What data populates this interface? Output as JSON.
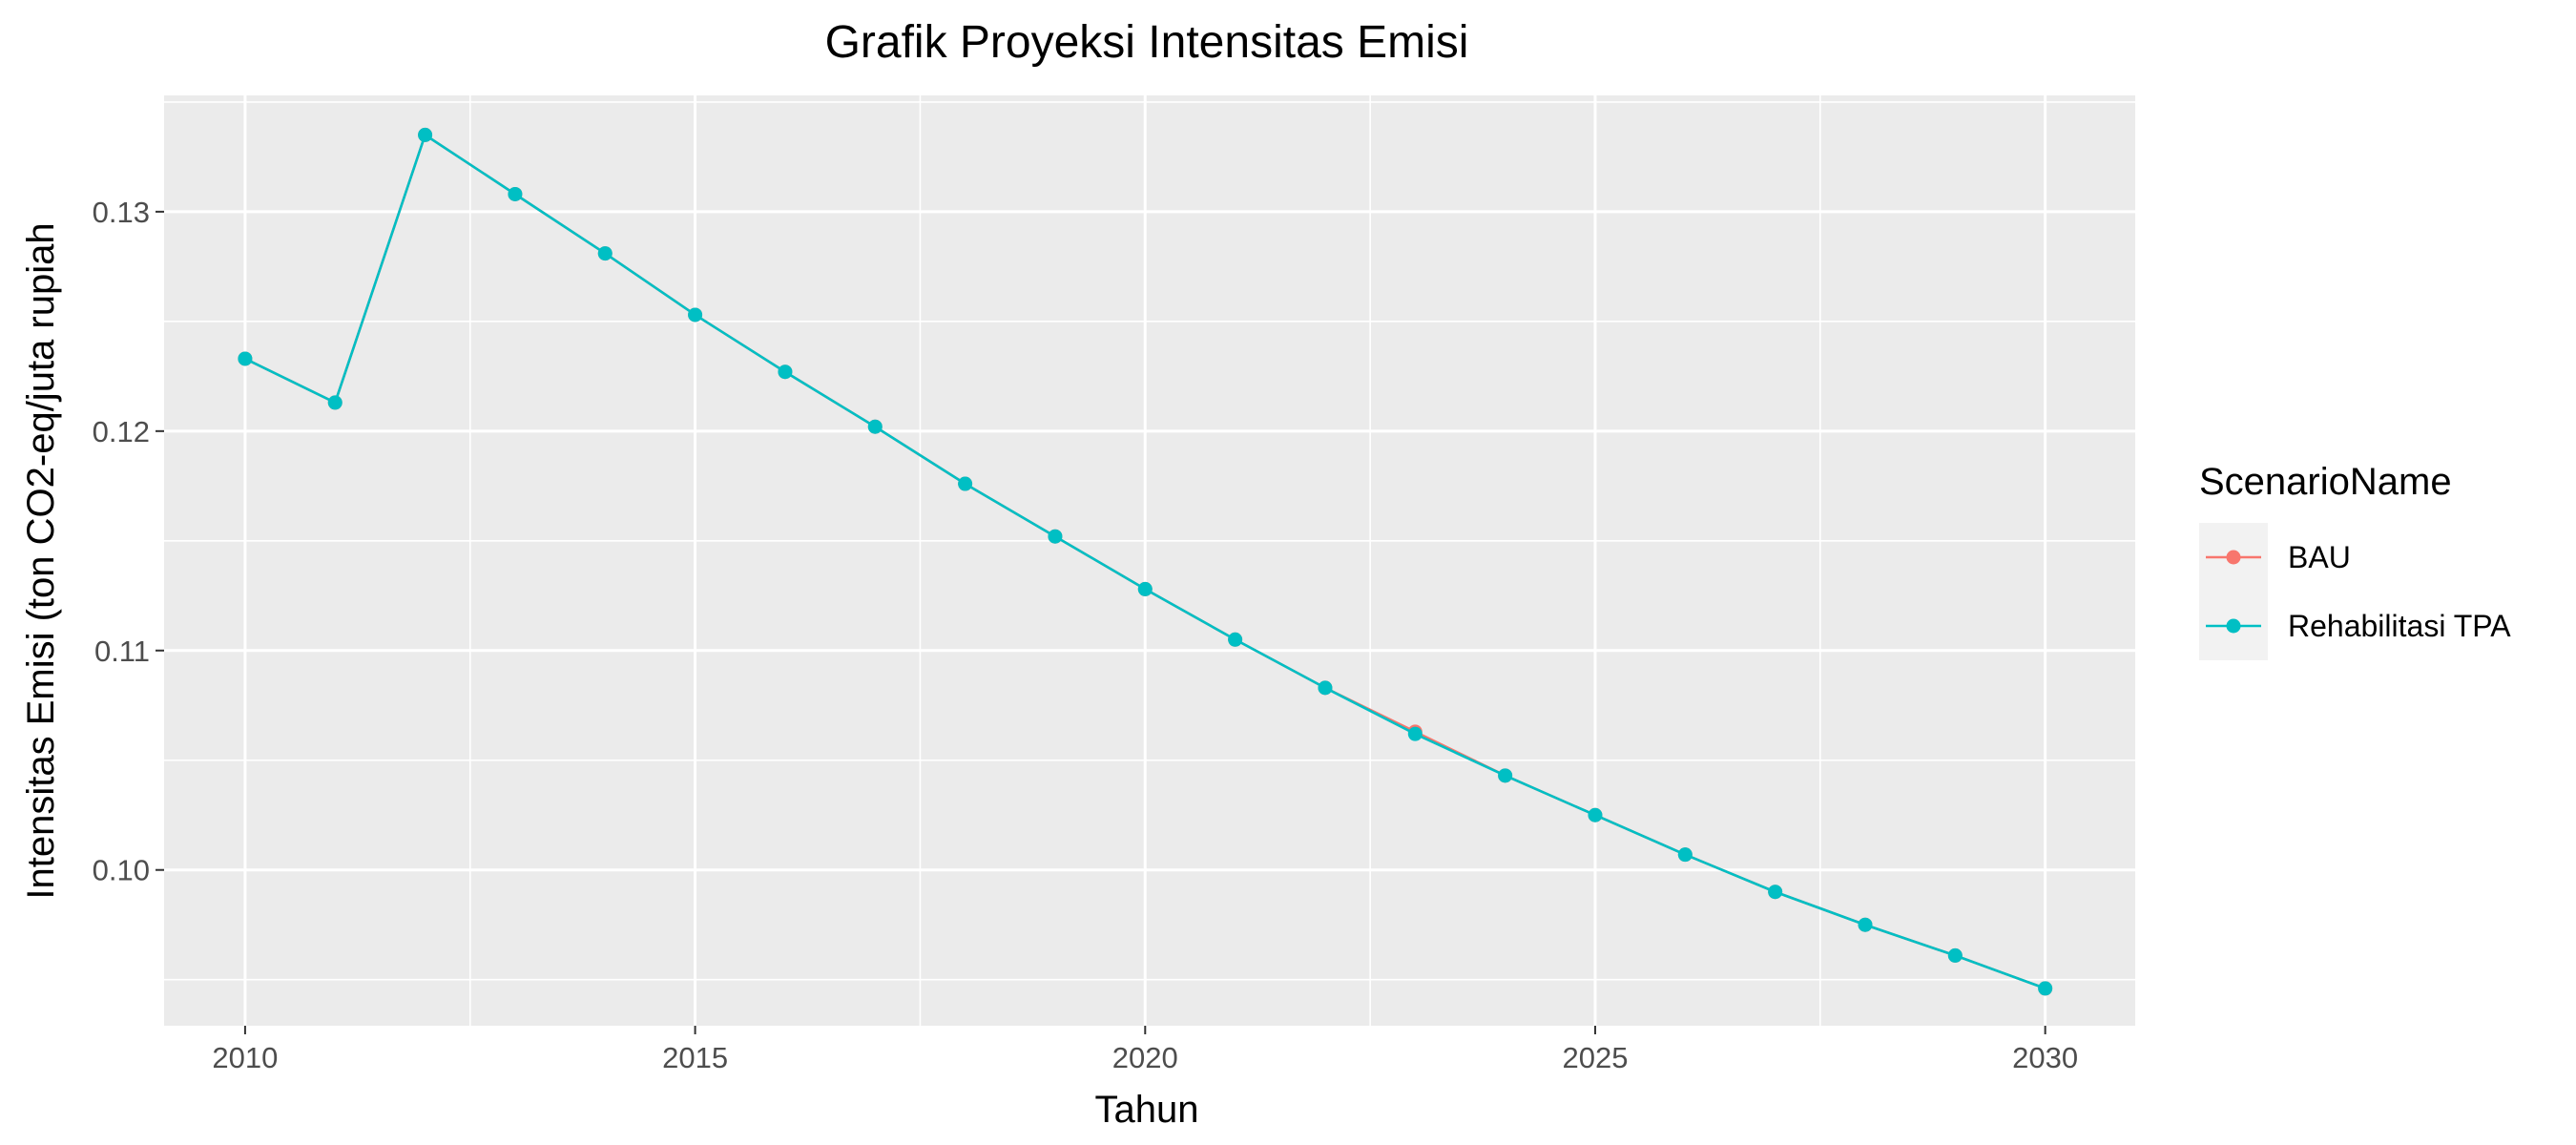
{
  "chart_data": {
    "type": "line",
    "title": "Grafik Proyeksi Intensitas Emisi",
    "xlabel": "Tahun",
    "ylabel": "Intensitas Emisi (ton CO2-eq/juta rupiah",
    "xlim": [
      2009.1,
      2031.0
    ],
    "ylim": [
      0.0929,
      0.1353
    ],
    "x_ticks": [
      2010,
      2015,
      2020,
      2025,
      2030
    ],
    "x_tick_labels": [
      "2010",
      "2015",
      "2020",
      "2025",
      "2030"
    ],
    "y_ticks": [
      0.1,
      0.11,
      0.12,
      0.13
    ],
    "y_tick_labels": [
      "0.10",
      "0.11",
      "0.12",
      "0.13"
    ],
    "grid": true,
    "legend": {
      "title": "ScenarioName",
      "position": "right"
    },
    "x": [
      2010,
      2011,
      2012,
      2013,
      2014,
      2015,
      2016,
      2017,
      2018,
      2019,
      2020,
      2021,
      2022,
      2023,
      2024,
      2025,
      2026,
      2027,
      2028,
      2029,
      2030
    ],
    "series": [
      {
        "name": "BAU",
        "color": "#F8766D",
        "values": [
          0.1233,
          0.1213,
          0.1335,
          0.1308,
          0.1281,
          0.1253,
          0.1227,
          0.1202,
          0.1176,
          0.1152,
          0.1128,
          0.1105,
          0.1083,
          0.1063,
          0.1043,
          0.1025,
          0.1007,
          0.099,
          0.0975,
          0.0961,
          0.0946
        ]
      },
      {
        "name": "Rehabilitasi TPA",
        "color": "#00BFC4",
        "values": [
          0.1233,
          0.1213,
          0.1335,
          0.1308,
          0.1281,
          0.1253,
          0.1227,
          0.1202,
          0.1176,
          0.1152,
          0.1128,
          0.1105,
          0.1083,
          0.1062,
          0.1043,
          0.1025,
          0.1007,
          0.099,
          0.0975,
          0.0961,
          0.0946
        ]
      }
    ]
  }
}
